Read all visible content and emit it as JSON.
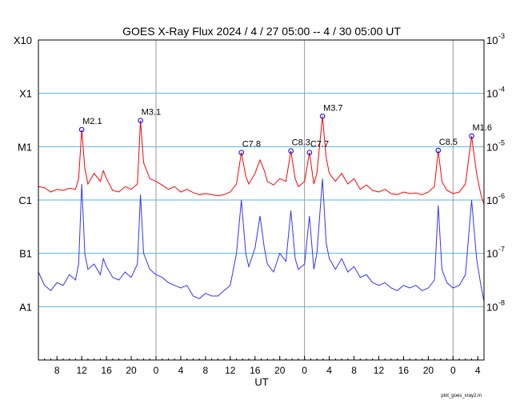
{
  "chart_data": {
    "type": "line",
    "title": "GOES X-Ray Flux   2024 /  4 / 27   05:00 --  4 / 30   05:00   UT",
    "xlabel": "UT",
    "footer": "plot_goes_xray2.m",
    "x_range_hours": [
      0,
      72
    ],
    "x_tick_labels": [
      "8",
      "12",
      "16",
      "20",
      "0",
      "4",
      "8",
      "12",
      "16",
      "20",
      "0",
      "4",
      "8",
      "12",
      "16",
      "20",
      "0",
      "4"
    ],
    "x_tick_hours": [
      3,
      7,
      11,
      15,
      19,
      23,
      27,
      31,
      35,
      39,
      43,
      47,
      51,
      55,
      59,
      63,
      67,
      71
    ],
    "day_boundaries_hours": [
      19,
      43,
      67
    ],
    "y_log_range": [
      -9,
      -3
    ],
    "left_class_labels": [
      "X10",
      "X1",
      "M1",
      "C1",
      "B1",
      "A1"
    ],
    "left_class_log": [
      -3,
      -4,
      -5,
      -6,
      -7,
      -8
    ],
    "right_mantissa": "10",
    "right_labels": [
      "-3",
      "-4",
      "-5",
      "-6",
      "-7",
      "-8"
    ],
    "right_label_log": [
      -3,
      -4,
      -5,
      -6,
      -7,
      -8
    ],
    "horizontal_gridlines_log": [
      -4,
      -5,
      -6,
      -7,
      -8
    ],
    "colors": {
      "long": "#ff0000",
      "short": "#3333ff",
      "grid": "#55b6e6",
      "day_line": "#999999",
      "marker": "#0000ff"
    },
    "flares": [
      {
        "label": "M2.1",
        "t": 7.0,
        "log_flux": -4.68
      },
      {
        "label": "M3.1",
        "t": 16.5,
        "log_flux": -4.51
      },
      {
        "label": "C7.8",
        "t": 32.8,
        "log_flux": -5.11
      },
      {
        "label": "C8.3",
        "t": 40.8,
        "log_flux": -5.08
      },
      {
        "label": "C7.7",
        "t": 43.8,
        "log_flux": -5.11
      },
      {
        "label": "M3.7",
        "t": 45.9,
        "log_flux": -4.43
      },
      {
        "label": "C8.5",
        "t": 64.6,
        "log_flux": -5.07
      },
      {
        "label": "M1.6",
        "t": 70.0,
        "log_flux": -4.8
      }
    ],
    "series": [
      {
        "key": "long",
        "t": [
          0,
          1,
          2,
          3,
          4,
          5,
          6,
          6.5,
          7,
          7.5,
          8,
          9,
          10,
          10.5,
          11,
          12,
          13,
          14,
          15,
          16,
          16.5,
          17,
          18,
          19,
          20,
          21,
          22,
          23,
          24,
          25,
          26,
          27,
          28,
          29,
          30,
          31,
          32,
          32.8,
          33.5,
          34,
          35,
          35.8,
          36.5,
          37,
          38,
          39,
          40,
          40.8,
          41.5,
          42,
          43,
          43.8,
          44.5,
          45,
          45.9,
          46.5,
          47,
          48,
          49,
          50,
          51,
          52,
          53,
          54,
          55,
          56,
          57,
          58,
          59,
          60,
          61,
          62,
          63,
          64,
          64.6,
          65.2,
          66,
          67,
          68,
          69,
          70,
          70.8,
          71.5,
          72
        ],
        "log": [
          -5.75,
          -5.77,
          -5.85,
          -5.8,
          -5.82,
          -5.78,
          -5.8,
          -5.6,
          -4.68,
          -5.4,
          -5.7,
          -5.5,
          -5.65,
          -5.45,
          -5.6,
          -5.82,
          -5.85,
          -5.75,
          -5.8,
          -5.7,
          -4.51,
          -5.3,
          -5.6,
          -5.65,
          -5.72,
          -5.8,
          -5.75,
          -5.85,
          -5.8,
          -5.86,
          -5.9,
          -5.88,
          -5.9,
          -5.92,
          -5.9,
          -5.85,
          -5.7,
          -5.11,
          -5.55,
          -5.7,
          -5.5,
          -5.25,
          -5.45,
          -5.65,
          -5.72,
          -5.6,
          -5.65,
          -5.08,
          -5.6,
          -5.75,
          -5.65,
          -5.11,
          -5.7,
          -5.5,
          -4.43,
          -5.2,
          -5.5,
          -5.65,
          -5.5,
          -5.7,
          -5.6,
          -5.8,
          -5.72,
          -5.82,
          -5.85,
          -5.8,
          -5.88,
          -5.9,
          -5.85,
          -5.88,
          -5.87,
          -5.9,
          -5.85,
          -5.75,
          -5.07,
          -5.65,
          -5.82,
          -5.88,
          -5.85,
          -5.7,
          -4.8,
          -5.5,
          -5.9,
          -6.08
        ]
      },
      {
        "key": "short",
        "t": [
          0,
          1,
          2,
          3,
          4,
          5,
          6,
          6.5,
          7,
          7.5,
          8,
          9,
          10,
          10.5,
          11,
          12,
          13,
          14,
          15,
          16,
          16.5,
          17,
          18,
          19,
          20,
          21,
          22,
          23,
          24,
          25,
          26,
          27,
          28,
          29,
          30,
          31,
          32,
          32.8,
          33.5,
          34,
          35,
          35.8,
          36.5,
          37,
          38,
          39,
          40,
          40.8,
          41.5,
          42,
          43,
          43.8,
          44.5,
          45,
          45.9,
          46.5,
          47,
          48,
          49,
          50,
          51,
          52,
          53,
          54,
          55,
          56,
          57,
          58,
          59,
          60,
          61,
          62,
          63,
          64,
          64.6,
          65.2,
          66,
          67,
          68,
          69,
          70,
          70.8,
          71.5,
          72
        ],
        "log": [
          -7.35,
          -7.6,
          -7.7,
          -7.55,
          -7.6,
          -7.4,
          -7.5,
          -7.2,
          -5.7,
          -7.0,
          -7.3,
          -7.2,
          -7.4,
          -7.1,
          -7.25,
          -7.45,
          -7.5,
          -7.35,
          -7.45,
          -7.2,
          -5.9,
          -7.0,
          -7.3,
          -7.4,
          -7.45,
          -7.55,
          -7.6,
          -7.65,
          -7.6,
          -7.8,
          -7.85,
          -7.75,
          -7.8,
          -7.8,
          -7.7,
          -7.6,
          -7.0,
          -6.0,
          -7.0,
          -7.25,
          -6.9,
          -6.3,
          -6.9,
          -7.2,
          -7.35,
          -7.0,
          -7.15,
          -6.2,
          -7.1,
          -7.3,
          -7.2,
          -6.3,
          -7.3,
          -7.0,
          -5.6,
          -6.8,
          -7.1,
          -7.3,
          -7.1,
          -7.35,
          -7.25,
          -7.45,
          -7.4,
          -7.55,
          -7.6,
          -7.55,
          -7.65,
          -7.7,
          -7.6,
          -7.65,
          -7.6,
          -7.7,
          -7.65,
          -7.5,
          -6.1,
          -7.3,
          -7.55,
          -7.65,
          -7.6,
          -7.4,
          -6.0,
          -7.1,
          -7.6,
          -7.9
        ]
      }
    ]
  }
}
